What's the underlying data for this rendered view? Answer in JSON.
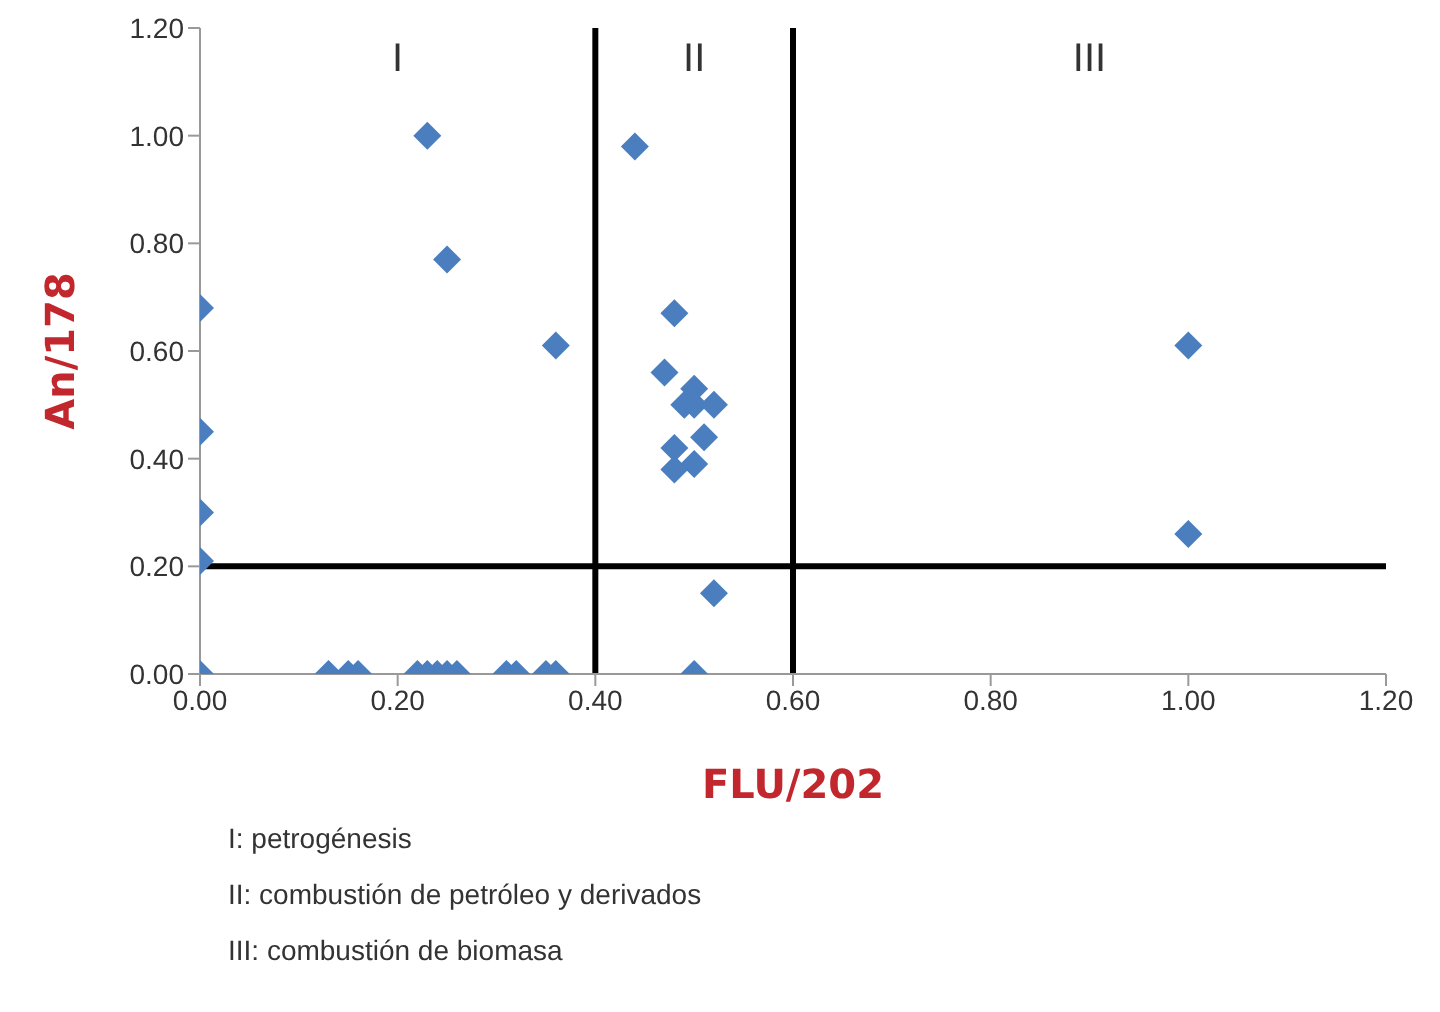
{
  "chart_data": {
    "type": "scatter",
    "xlabel": "FLU/202",
    "ylabel": "An/178",
    "marker": "diamond",
    "grid": false,
    "legend": false,
    "series": [
      {
        "color": "#4a7ebf",
        "x": [
          0,
          0,
          0,
          0,
          0,
          0.23,
          0.25,
          0.36,
          0.44,
          0.48,
          0.47,
          0.5,
          0.49,
          0.5,
          0.52,
          0.51,
          0.48,
          0.5,
          0.48,
          0.52,
          0.5,
          1.0,
          1.0,
          0.13,
          0.15,
          0.16,
          0.22,
          0.23,
          0.24,
          0.25,
          0.26,
          0.31,
          0.32,
          0.35,
          0.36
        ],
        "values": [
          0.68,
          0.45,
          0.3,
          0.21,
          0,
          1.0,
          0.77,
          0.61,
          0.98,
          0.67,
          0.56,
          0.53,
          0.5,
          0.5,
          0.5,
          0.44,
          0.42,
          0.39,
          0.38,
          0.15,
          0,
          0.61,
          0.26,
          0,
          0,
          0,
          0,
          0,
          0,
          0,
          0,
          0,
          0,
          0,
          0
        ]
      }
    ],
    "xlim": [
      0,
      1.2
    ],
    "ylim": [
      0,
      1.2
    ],
    "xticks": [
      {
        "value": 0,
        "label": "0.00"
      },
      {
        "value": 0.2,
        "label": "0.20"
      },
      {
        "value": 0.4,
        "label": "0.40"
      },
      {
        "value": 0.6,
        "label": "0.60"
      },
      {
        "value": 0.8,
        "label": "0.80"
      },
      {
        "value": 1.0,
        "label": "1.00"
      },
      {
        "value": 1.2,
        "label": "1.20"
      }
    ],
    "yticks": [
      {
        "value": 0,
        "label": "0.00"
      },
      {
        "value": 0.2,
        "label": "0.20"
      },
      {
        "value": 0.4,
        "label": "0.40"
      },
      {
        "value": 0.6,
        "label": "0.60"
      },
      {
        "value": 0.8,
        "label": "0.80"
      },
      {
        "value": 1.0,
        "label": "1.00"
      },
      {
        "value": 1.2,
        "label": "1.20"
      }
    ],
    "ref_lines": [
      {
        "axis": "x",
        "value": 0.4,
        "color": "#000000"
      },
      {
        "axis": "x",
        "value": 0.6,
        "color": "#000000"
      },
      {
        "axis": "y",
        "value": 0.2,
        "color": "#000000"
      }
    ],
    "annotations": [
      "I",
      "II",
      "III",
      "I: petrogénesis",
      "II: combustión de petróleo y derivados",
      "III: combustión de biomasa"
    ]
  }
}
